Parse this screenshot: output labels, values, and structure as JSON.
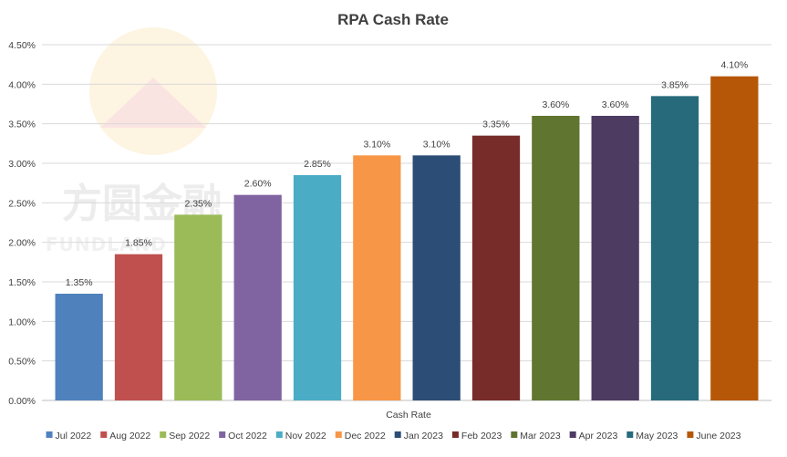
{
  "chart_data": {
    "type": "bar",
    "title": "RPA Cash Rate",
    "xlabel": "Cash Rate",
    "ylabel": "",
    "ylim": [
      0,
      0.045
    ],
    "y_ticks": [
      "0.00%",
      "0.50%",
      "1.00%",
      "1.50%",
      "2.00%",
      "2.50%",
      "3.00%",
      "3.50%",
      "4.00%",
      "4.50%"
    ],
    "grid": true,
    "legend_position": "bottom",
    "categories": [
      "Jul 2022",
      "Aug 2022",
      "Sep 2022",
      "Oct 2022",
      "Nov 2022",
      "Dec 2022",
      "Jan 2023",
      "Feb 2023",
      "Mar 2023",
      "Apr 2023",
      "May 2023",
      "June 2023"
    ],
    "values": [
      0.0135,
      0.0185,
      0.0235,
      0.026,
      0.0285,
      0.031,
      0.031,
      0.0335,
      0.036,
      0.036,
      0.0385,
      0.041
    ],
    "data_labels": [
      "1.35%",
      "1.85%",
      "2.35%",
      "2.60%",
      "2.85%",
      "3.10%",
      "3.10%",
      "3.35%",
      "3.60%",
      "3.60%",
      "3.85%",
      "4.10%"
    ],
    "colors": [
      "#4f81bd",
      "#c0504d",
      "#9bbb59",
      "#8064a2",
      "#4bacc6",
      "#f79646",
      "#2c4d75",
      "#772c2a",
      "#5f7530",
      "#4d3b62",
      "#276a7c",
      "#b65708"
    ]
  },
  "watermark": {
    "text_cn": "方圆金融",
    "text_en": "FUNDLAND",
    "logo": "mountain-sun-logo"
  }
}
